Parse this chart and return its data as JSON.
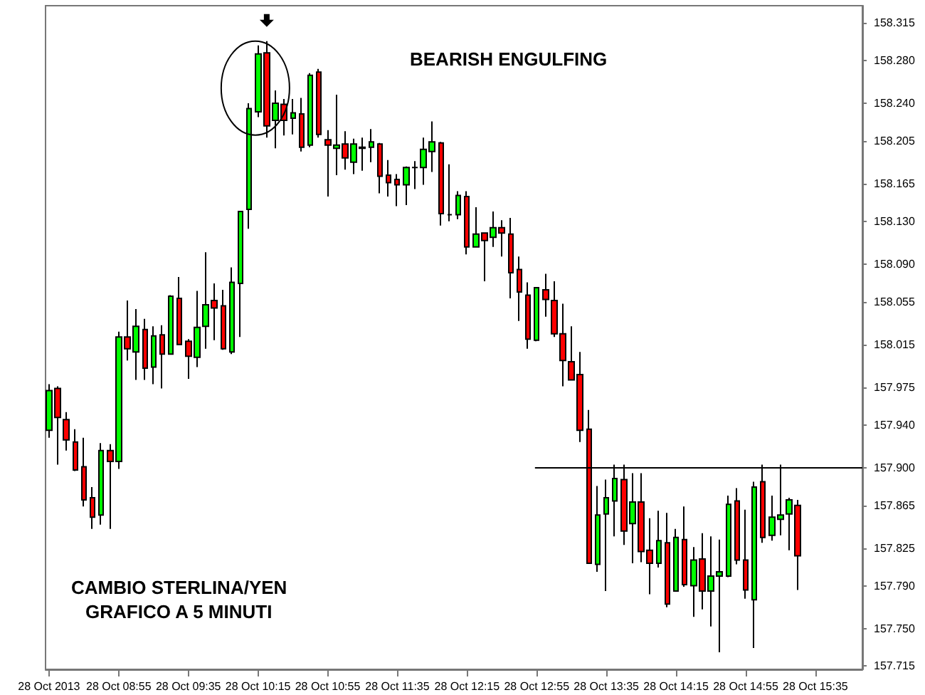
{
  "chart_data": {
    "type": "candlestick",
    "annotations": [
      "BEARISH ENGULFING",
      "CAMBIO STERLINA/YEN",
      "GRAFICO A 5 MINUTI"
    ],
    "x": [
      "2013-10-28T08:15",
      "2013-10-28T08:20",
      "2013-10-28T08:25",
      "2013-10-28T08:30",
      "2013-10-28T08:35",
      "2013-10-28T08:40",
      "2013-10-28T08:45",
      "2013-10-28T08:50",
      "2013-10-28T08:55",
      "2013-10-28T09:00",
      "2013-10-28T09:05",
      "2013-10-28T09:10",
      "2013-10-28T09:15",
      "2013-10-28T09:20",
      "2013-10-28T09:25",
      "2013-10-28T09:30",
      "2013-10-28T09:35",
      "2013-10-28T09:40",
      "2013-10-28T09:45",
      "2013-10-28T09:50",
      "2013-10-28T09:55",
      "2013-10-28T10:00",
      "2013-10-28T10:05",
      "2013-10-28T10:10",
      "2013-10-28T10:15",
      "2013-10-28T10:20",
      "2013-10-28T10:25",
      "2013-10-28T10:30",
      "2013-10-28T10:35",
      "2013-10-28T10:40",
      "2013-10-28T10:45",
      "2013-10-28T10:50",
      "2013-10-28T10:55",
      "2013-10-28T11:00",
      "2013-10-28T11:05",
      "2013-10-28T11:10",
      "2013-10-28T11:15",
      "2013-10-28T11:20",
      "2013-10-28T11:25",
      "2013-10-28T11:30",
      "2013-10-28T11:35",
      "2013-10-28T11:40",
      "2013-10-28T11:45",
      "2013-10-28T11:50",
      "2013-10-28T11:55",
      "2013-10-28T12:00",
      "2013-10-28T12:05",
      "2013-10-28T12:10",
      "2013-10-28T12:15",
      "2013-10-28T12:20",
      "2013-10-28T12:25",
      "2013-10-28T12:30",
      "2013-10-28T12:35",
      "2013-10-28T12:40",
      "2013-10-28T12:45",
      "2013-10-28T12:50",
      "2013-10-28T12:55",
      "2013-10-28T13:00",
      "2013-10-28T13:05",
      "2013-10-28T13:10",
      "2013-10-28T13:15",
      "2013-10-28T13:20",
      "2013-10-28T13:25",
      "2013-10-28T13:30",
      "2013-10-28T13:35",
      "2013-10-28T13:40",
      "2013-10-28T13:45",
      "2013-10-28T13:50",
      "2013-10-28T13:55",
      "2013-10-28T14:00",
      "2013-10-28T14:05",
      "2013-10-28T14:10",
      "2013-10-28T14:15",
      "2013-10-28T14:20",
      "2013-10-28T14:25",
      "2013-10-28T14:30",
      "2013-10-28T14:35",
      "2013-10-28T14:40",
      "2013-10-28T14:45",
      "2013-10-28T14:50",
      "2013-10-28T14:55",
      "2013-10-28T15:00",
      "2013-10-28T15:05",
      "2013-10-28T15:10",
      "2013-10-28T15:15",
      "2013-10-28T15:20",
      "2013-10-28T15:25"
    ],
    "ohlc": [
      [
        157.935,
        157.978,
        157.928,
        157.972
      ],
      [
        157.974,
        157.976,
        157.903,
        157.947
      ],
      [
        157.945,
        157.952,
        157.916,
        157.926
      ],
      [
        157.924,
        157.936,
        157.897,
        157.898
      ],
      [
        157.901,
        157.928,
        157.864,
        157.87
      ],
      [
        157.872,
        157.882,
        157.843,
        157.854
      ],
      [
        157.856,
        157.923,
        157.847,
        157.916
      ],
      [
        157.916,
        157.922,
        157.843,
        157.906
      ],
      [
        157.906,
        158.027,
        157.899,
        158.022
      ],
      [
        158.022,
        158.056,
        158.0,
        158.011
      ],
      [
        158.008,
        158.048,
        157.982,
        158.032
      ],
      [
        158.029,
        158.039,
        157.982,
        157.993
      ],
      [
        157.994,
        158.032,
        157.978,
        158.023
      ],
      [
        158.024,
        158.033,
        157.974,
        158.006
      ],
      [
        158.006,
        158.061,
        158.006,
        158.06
      ],
      [
        158.058,
        158.078,
        158.015,
        158.015
      ],
      [
        158.018,
        158.02,
        157.983,
        158.004
      ],
      [
        158.003,
        158.065,
        157.994,
        158.031
      ],
      [
        158.032,
        158.101,
        158.011,
        158.052
      ],
      [
        158.056,
        158.072,
        158.019,
        158.049
      ],
      [
        158.051,
        158.066,
        158.01,
        158.011
      ],
      [
        158.008,
        158.087,
        158.006,
        158.073
      ],
      [
        158.072,
        158.139,
        158.022,
        158.139
      ],
      [
        158.141,
        158.24,
        158.123,
        158.235
      ],
      [
        158.232,
        158.294,
        158.227,
        158.286
      ],
      [
        158.287,
        158.298,
        158.208,
        158.219
      ],
      [
        158.224,
        158.252,
        158.198,
        158.24
      ],
      [
        158.239,
        158.244,
        158.21,
        158.224
      ],
      [
        158.226,
        158.244,
        158.211,
        158.231
      ],
      [
        158.23,
        158.245,
        158.195,
        158.199
      ],
      [
        158.201,
        158.268,
        158.199,
        158.266
      ],
      [
        158.269,
        158.272,
        158.208,
        158.211
      ],
      [
        158.206,
        158.215,
        158.153,
        158.201
      ],
      [
        158.198,
        158.248,
        158.173,
        158.201
      ],
      [
        158.202,
        158.214,
        158.178,
        158.189
      ],
      [
        158.185,
        158.207,
        158.174,
        158.202
      ],
      [
        158.199,
        158.208,
        158.177,
        158.198
      ],
      [
        158.199,
        158.216,
        158.185,
        158.204
      ],
      [
        158.202,
        158.203,
        158.156,
        158.172
      ],
      [
        158.173,
        158.187,
        158.153,
        158.166
      ],
      [
        158.169,
        158.174,
        158.144,
        158.164
      ],
      [
        158.164,
        158.181,
        158.145,
        158.18
      ],
      [
        158.18,
        158.186,
        158.16,
        158.18
      ],
      [
        158.18,
        158.208,
        158.164,
        158.197
      ],
      [
        158.195,
        158.223,
        158.176,
        158.204
      ],
      [
        158.203,
        158.204,
        158.126,
        158.137
      ],
      [
        158.136,
        158.183,
        158.13,
        158.136
      ],
      [
        158.136,
        158.158,
        158.132,
        158.154
      ],
      [
        158.153,
        158.158,
        158.099,
        158.106
      ],
      [
        158.106,
        158.143,
        158.106,
        158.118
      ],
      [
        158.119,
        158.119,
        158.074,
        158.112
      ],
      [
        158.115,
        158.139,
        158.106,
        158.124
      ],
      [
        158.124,
        158.131,
        158.097,
        158.119
      ],
      [
        158.118,
        158.133,
        158.058,
        158.082
      ],
      [
        158.085,
        158.097,
        158.037,
        158.064
      ],
      [
        158.061,
        158.073,
        158.011,
        158.02
      ],
      [
        158.019,
        158.068,
        158.018,
        158.068
      ],
      [
        158.066,
        158.081,
        158.041,
        158.057
      ],
      [
        158.056,
        158.074,
        158.022,
        158.025
      ],
      [
        158.025,
        158.053,
        157.976,
        158.0
      ],
      [
        157.999,
        158.032,
        157.982,
        157.982
      ],
      [
        157.987,
        158.008,
        157.924,
        157.935
      ],
      [
        157.936,
        157.954,
        157.811,
        157.811
      ],
      [
        157.81,
        157.883,
        157.803,
        157.856
      ],
      [
        157.857,
        157.889,
        157.785,
        157.872
      ],
      [
        157.869,
        157.903,
        157.836,
        157.89
      ],
      [
        157.889,
        157.903,
        157.828,
        157.841
      ],
      [
        157.848,
        157.895,
        157.811,
        157.868
      ],
      [
        157.868,
        157.895,
        157.812,
        157.822
      ],
      [
        157.823,
        157.853,
        157.782,
        157.811
      ],
      [
        157.811,
        157.86,
        157.807,
        157.832
      ],
      [
        157.83,
        157.858,
        157.77,
        157.773
      ],
      [
        157.785,
        157.843,
        157.785,
        157.835
      ],
      [
        157.833,
        157.864,
        157.789,
        157.791
      ],
      [
        157.79,
        157.826,
        157.761,
        157.814
      ],
      [
        157.815,
        157.839,
        157.768,
        157.785
      ],
      [
        157.785,
        157.836,
        157.752,
        157.799
      ],
      [
        157.799,
        157.833,
        157.728,
        157.803
      ],
      [
        157.799,
        157.874,
        157.798,
        157.866
      ],
      [
        157.869,
        157.881,
        157.81,
        157.814
      ],
      [
        157.814,
        157.861,
        157.778,
        157.786
      ],
      [
        157.777,
        157.887,
        157.732,
        157.882
      ],
      [
        157.887,
        157.903,
        157.83,
        157.835
      ],
      [
        157.837,
        157.874,
        157.832,
        157.854
      ],
      [
        157.852,
        157.903,
        157.837,
        157.856
      ],
      [
        157.857,
        157.872,
        157.823,
        157.87
      ],
      [
        157.865,
        157.87,
        157.786,
        157.818
      ]
    ],
    "colors": [
      "#00ff00",
      "#ff0000",
      "#ff0000",
      "#ff0000",
      "#ff0000",
      "#ff0000",
      "#00ff00",
      "#ff0000",
      "#00ff00",
      "#ff0000",
      "#00ff00",
      "#ff0000",
      "#00ff00",
      "#ff0000",
      "#00ff00",
      "#ff0000",
      "#ff0000",
      "#00ff00",
      "#00ff00",
      "#ff0000",
      "#ff0000",
      "#00ff00",
      "#00ff00",
      "#00ff00",
      "#00ff00",
      "#ff0000",
      "#00ff00",
      "#ff0000",
      "#00ff00",
      "#ff0000",
      "#00ff00",
      "#ff0000",
      "#ff0000",
      "#00ff00",
      "#ff0000",
      "#00ff00",
      "#ff0000",
      "#00ff00",
      "#ff0000",
      "#ff0000",
      "#ff0000",
      "#00ff00",
      "#000000",
      "#00ff00",
      "#00ff00",
      "#ff0000",
      "#000000",
      "#00ff00",
      "#ff0000",
      "#00ff00",
      "#ff0000",
      "#00ff00",
      "#ff0000",
      "#ff0000",
      "#ff0000",
      "#ff0000",
      "#00ff00",
      "#ff0000",
      "#ff0000",
      "#ff0000",
      "#ff0000",
      "#ff0000",
      "#ff0000",
      "#00ff00",
      "#00ff00",
      "#00ff00",
      "#ff0000",
      "#00ff00",
      "#ff0000",
      "#ff0000",
      "#00ff00",
      "#ff0000",
      "#00ff00",
      "#ff0000",
      "#00ff00",
      "#ff0000",
      "#00ff00",
      "#00ff00",
      "#00ff00",
      "#ff0000",
      "#ff0000",
      "#00ff00",
      "#ff0000",
      "#00ff00",
      "#00ff00",
      "#00ff00",
      "#ff0000"
    ],
    "xlim": [
      "2013-10-28T08:13",
      "2013-10-28T16:02"
    ],
    "xticks": [
      {
        "value": "2013-10-28T08:15",
        "label": "28 Oct 2013"
      },
      {
        "value": "2013-10-28T08:55",
        "label": "28 Oct 08:55"
      },
      {
        "value": "2013-10-28T09:35",
        "label": "28 Oct 09:35"
      },
      {
        "value": "2013-10-28T10:15",
        "label": "28 Oct 10:15"
      },
      {
        "value": "2013-10-28T10:55",
        "label": "28 Oct 10:55"
      },
      {
        "value": "2013-10-28T11:35",
        "label": "28 Oct 11:35"
      },
      {
        "value": "2013-10-28T12:15",
        "label": "28 Oct 12:15"
      },
      {
        "value": "2013-10-28T12:55",
        "label": "28 Oct 12:55"
      },
      {
        "value": "2013-10-28T13:35",
        "label": "28 Oct 13:35"
      },
      {
        "value": "2013-10-28T14:15",
        "label": "28 Oct 14:15"
      },
      {
        "value": "2013-10-28T14:55",
        "label": "28 Oct 14:55"
      },
      {
        "value": "2013-10-28T15:35",
        "label": "28 Oct 15:35"
      }
    ],
    "ylim": [
      157.712,
      158.331
    ],
    "yticks": [
      {
        "value": 157.715,
        "label": "157.715"
      },
      {
        "value": 157.75,
        "label": "157.750"
      },
      {
        "value": 157.79,
        "label": "157.790"
      },
      {
        "value": 157.825,
        "label": "157.825"
      },
      {
        "value": 157.865,
        "label": "157.865"
      },
      {
        "value": 157.9,
        "label": "157.900"
      },
      {
        "value": 157.94,
        "label": "157.940"
      },
      {
        "value": 157.975,
        "label": "157.975"
      },
      {
        "value": 158.015,
        "label": "158.015"
      },
      {
        "value": 158.055,
        "label": "158.055"
      },
      {
        "value": 158.09,
        "label": "158.090"
      },
      {
        "value": 158.13,
        "label": "158.130"
      },
      {
        "value": 158.165,
        "label": "158.165"
      },
      {
        "value": 158.205,
        "label": "158.205"
      },
      {
        "value": 158.24,
        "label": "158.240"
      },
      {
        "value": 158.28,
        "label": "158.280"
      },
      {
        "value": 158.315,
        "label": "158.315"
      }
    ],
    "series": [
      {
        "type": "line",
        "x": [
          "2013-10-28T12:54",
          "2013-10-28T16:02"
        ],
        "values": [
          157.9,
          157.9
        ],
        "color": "#000000"
      }
    ],
    "marker": "none",
    "grid": false
  }
}
